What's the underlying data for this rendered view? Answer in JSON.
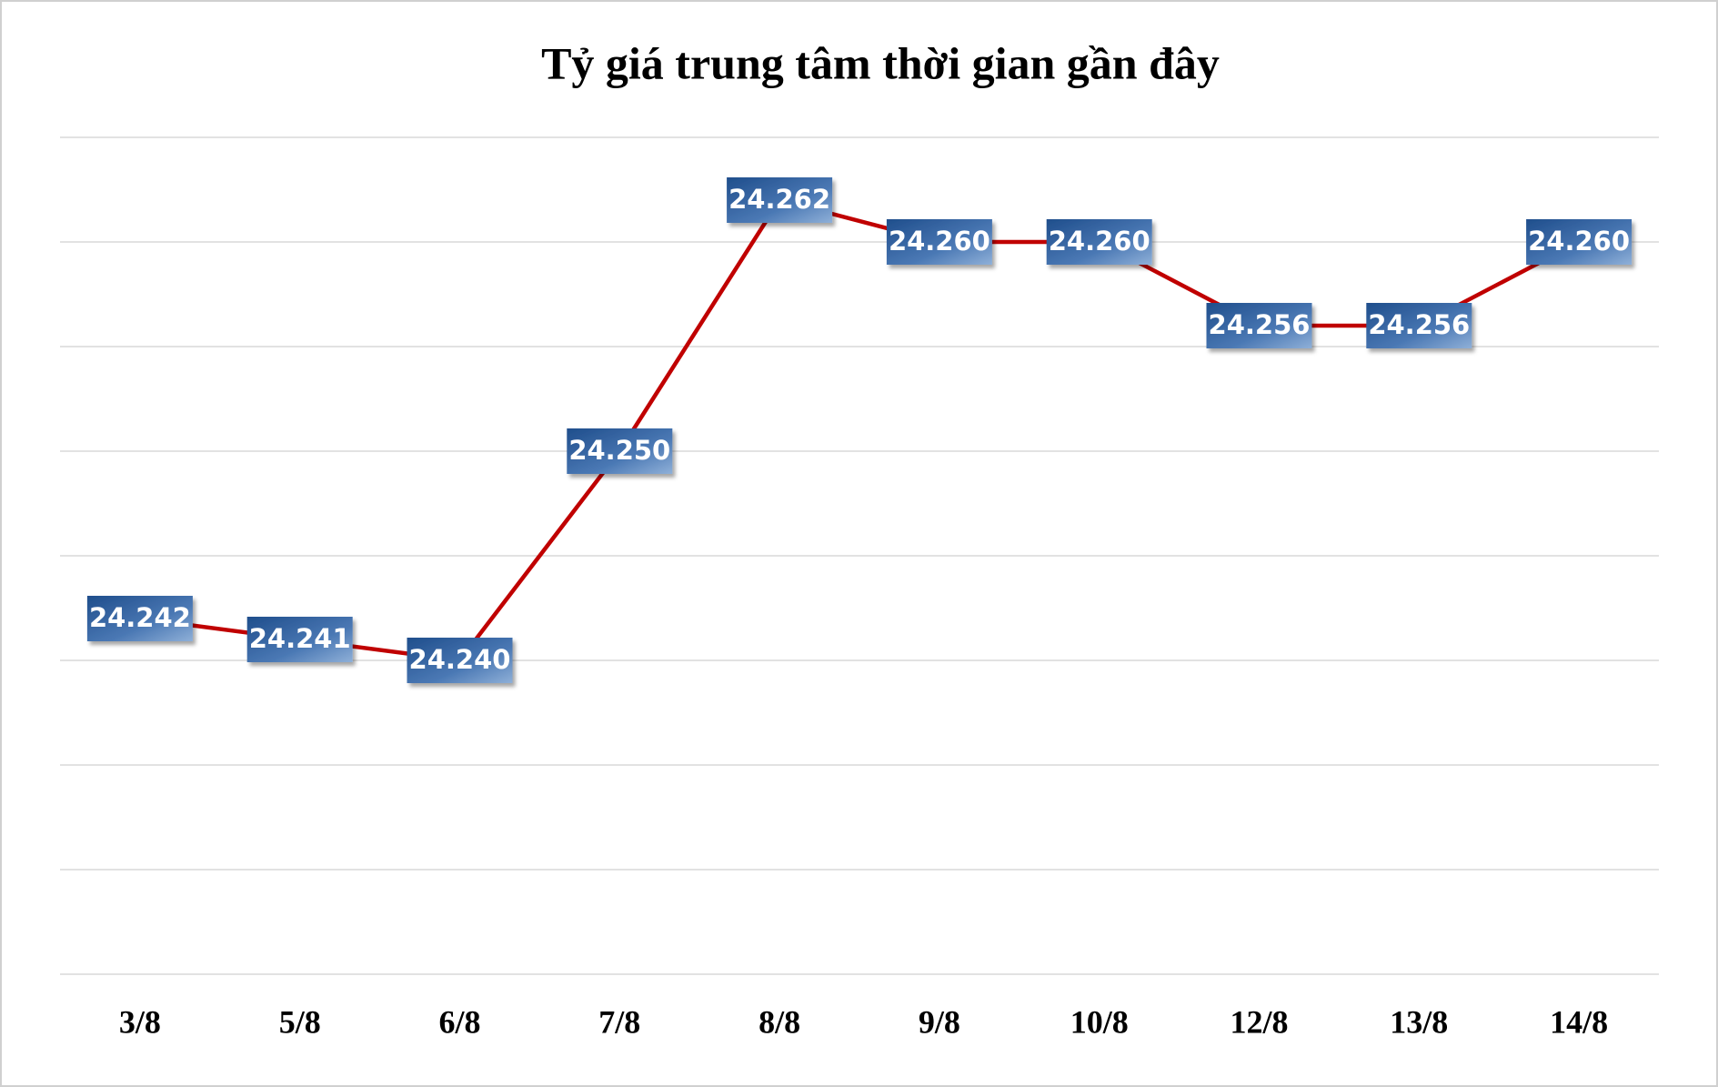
{
  "chart_data": {
    "type": "line",
    "title": "Tỷ giá trung tâm thời gian gần đây",
    "categories": [
      "3/8",
      "5/8",
      "6/8",
      "7/8",
      "8/8",
      "9/8",
      "10/8",
      "12/8",
      "13/8",
      "14/8"
    ],
    "series": [
      {
        "color": "#c00000",
        "values": [
          24.242,
          24.241,
          24.24,
          24.25,
          24.262,
          24.26,
          24.26,
          24.256,
          24.256,
          24.26
        ],
        "value_labels": [
          "24.242",
          "24.241",
          "24.240",
          "24.250",
          "24.262",
          "24.260",
          "24.260",
          "24.256",
          "24.256",
          "24.260"
        ]
      }
    ],
    "ylim": [
      24.225,
      24.265
    ],
    "yticks": [
      24.225,
      24.23,
      24.235,
      24.24,
      24.245,
      24.25,
      24.255,
      24.26,
      24.265
    ],
    "grid": true
  }
}
